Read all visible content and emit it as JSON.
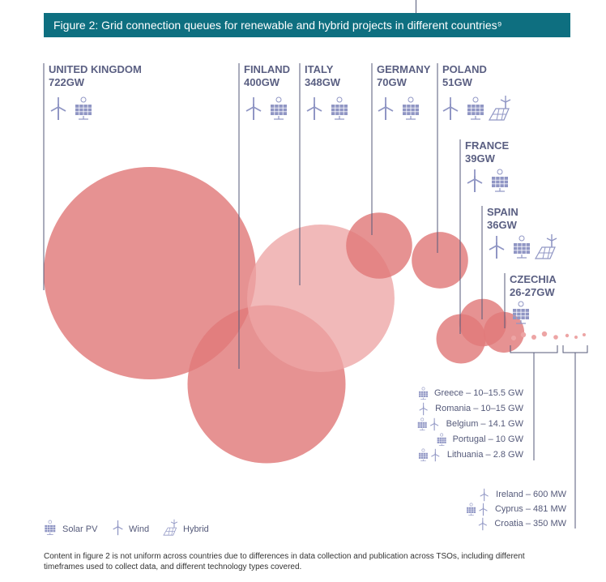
{
  "figure_title": "Figure 2: Grid connection queues for renewable and hybrid projects in different countries⁹",
  "colors": {
    "title_bg": "#0e6f80",
    "bubble_dark": "#e07a7a",
    "bubble_light": "#eda5a5",
    "text": "#555a7a",
    "icon": "#9096c4"
  },
  "chart_data": {
    "type": "bubble",
    "title": "Figure 2: Grid connection queues for renewable and hybrid projects in different countries⁹",
    "series": [
      {
        "country": "UNITED KINGDOM",
        "label": "722GW",
        "value_gw": 722,
        "technologies": [
          "wind",
          "solar"
        ]
      },
      {
        "country": "FINLAND",
        "label": "400GW",
        "value_gw": 400,
        "technologies": [
          "wind",
          "solar"
        ]
      },
      {
        "country": "ITALY",
        "label": "348GW",
        "value_gw": 348,
        "technologies": [
          "wind",
          "solar"
        ]
      },
      {
        "country": "GERMANY",
        "label": "70GW",
        "value_gw": 70,
        "technologies": [
          "wind",
          "solar"
        ]
      },
      {
        "country": "POLAND",
        "label": "51GW",
        "value_gw": 51,
        "technologies": [
          "wind",
          "solar",
          "hybrid"
        ]
      },
      {
        "country": "FRANCE",
        "label": "39GW",
        "value_gw": 39,
        "technologies": [
          "wind",
          "solar"
        ]
      },
      {
        "country": "SPAIN",
        "label": "36GW",
        "value_gw": 36,
        "technologies": [
          "wind",
          "solar",
          "hybrid"
        ]
      },
      {
        "country": "CZECHIA",
        "label": "26-27GW",
        "value_gw": 26.5,
        "technologies": [
          "solar"
        ]
      }
    ],
    "small_countries_gw": [
      {
        "text": "Greece – 10–15.5 GW",
        "technologies": [
          "solar"
        ]
      },
      {
        "text": "Romania – 10–15 GW",
        "technologies": [
          "wind"
        ]
      },
      {
        "text": "Belgium – 14.1 GW",
        "technologies": [
          "solar",
          "wind"
        ]
      },
      {
        "text": "Portugal – 10 GW",
        "technologies": [
          "solar"
        ]
      },
      {
        "text": "Lithuania – 2.8 GW",
        "technologies": [
          "solar",
          "wind"
        ]
      }
    ],
    "small_countries_mw": [
      {
        "text": "Ireland – 600 MW",
        "technologies": [
          "wind"
        ]
      },
      {
        "text": "Cyprus – 481 MW",
        "technologies": [
          "solar",
          "wind"
        ]
      },
      {
        "text": "Croatia – 350 MW",
        "technologies": [
          "wind"
        ]
      }
    ],
    "legend": [
      {
        "key": "solar",
        "label": "Solar PV"
      },
      {
        "key": "wind",
        "label": "Wind"
      },
      {
        "key": "hybrid",
        "label": "Hybrid"
      }
    ]
  },
  "note": "Content in figure 2 is not uniform across countries due to differences in data collection and publication across TSOs, including different timeframes used to collect data, and different technology types covered."
}
